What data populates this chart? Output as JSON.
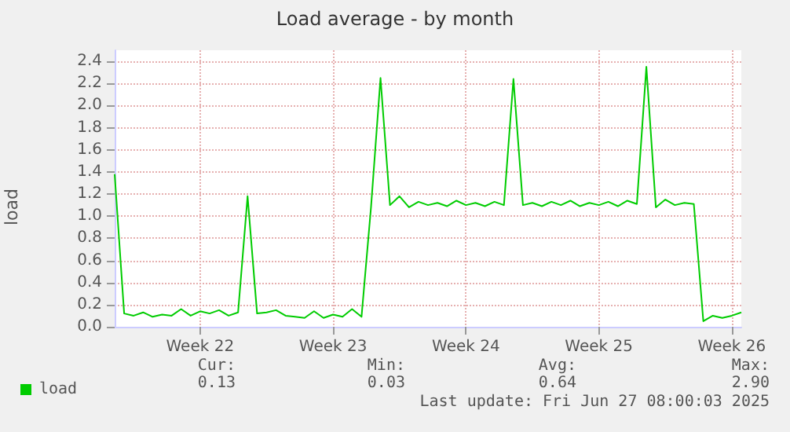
{
  "chart_data": {
    "type": "line",
    "title": "Load average - by month",
    "ylabel": "load",
    "categories": [
      null,
      null,
      null,
      null,
      null,
      null,
      null,
      null,
      null,
      "Week 22",
      null,
      null,
      null,
      null,
      null,
      null,
      null,
      null,
      null,
      null,
      null,
      null,
      null,
      "Week 23",
      null,
      null,
      null,
      null,
      null,
      null,
      null,
      null,
      null,
      null,
      null,
      null,
      null,
      "Week 24",
      null,
      null,
      null,
      null,
      null,
      null,
      null,
      null,
      null,
      null,
      null,
      null,
      null,
      "Week 25",
      null,
      null,
      null,
      null,
      null,
      null,
      null,
      null,
      null,
      null,
      null,
      null,
      null,
      "Week 26",
      null
    ],
    "series": [
      {
        "name": "load",
        "color": "#00cc00",
        "values": [
          1.38,
          0.12,
          0.1,
          0.13,
          0.09,
          0.11,
          0.1,
          0.16,
          0.1,
          0.14,
          0.12,
          0.15,
          0.1,
          0.13,
          1.18,
          0.12,
          0.13,
          0.15,
          0.1,
          0.09,
          0.08,
          0.14,
          0.08,
          0.11,
          0.09,
          0.16,
          0.09,
          1.08,
          2.25,
          1.1,
          1.18,
          1.08,
          1.13,
          1.1,
          1.12,
          1.09,
          1.14,
          1.1,
          1.12,
          1.09,
          1.13,
          1.1,
          2.24,
          1.1,
          1.12,
          1.09,
          1.13,
          1.1,
          1.14,
          1.09,
          1.12,
          1.1,
          1.13,
          1.09,
          1.14,
          1.11,
          2.35,
          1.08,
          1.15,
          1.1,
          1.12,
          1.11,
          0.05,
          0.1,
          0.08,
          0.1,
          0.13
        ]
      }
    ],
    "ylim": [
      0,
      2.5
    ],
    "yticks": [
      {
        "value": 0,
        "label": "0.0"
      },
      0.2,
      0.4,
      0.6,
      0.8,
      {
        "value": 1,
        "label": "1.0"
      },
      1.2,
      1.4,
      1.6,
      1.8,
      {
        "value": 2,
        "label": "2.0"
      },
      2.2,
      2.4
    ],
    "grid": true,
    "legend": "bottom left",
    "marker": "none",
    "line_style": "solid",
    "annotations": [
      "Cur:",
      "0.13",
      "Min:",
      "0.03",
      "Avg:",
      "0.64",
      "Max:",
      "2.90",
      "Last update: Fri Jun 27 08:00:03 2025"
    ]
  }
}
